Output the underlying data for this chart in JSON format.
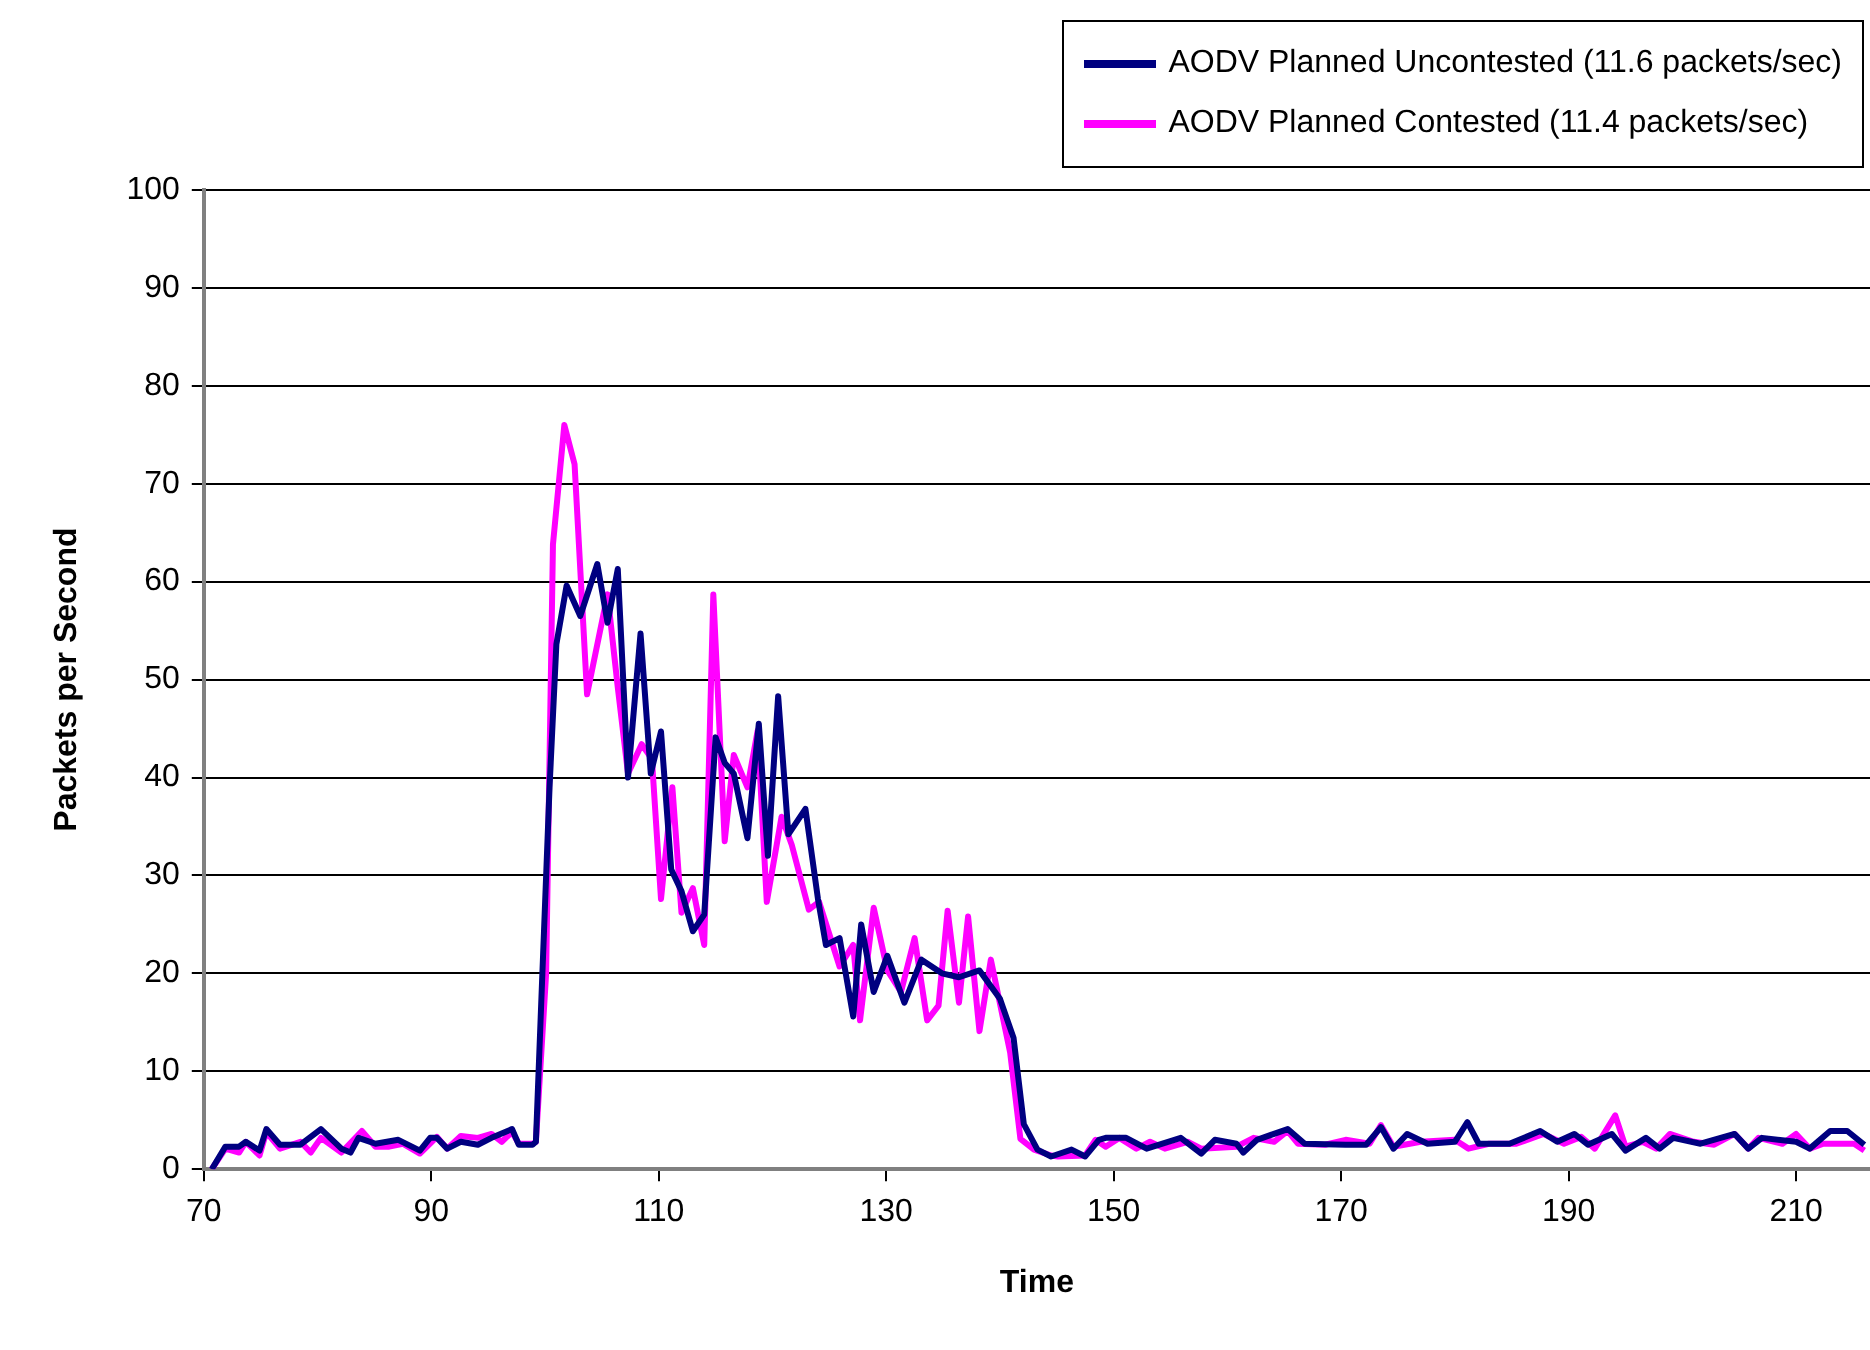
{
  "chart_data": {
    "type": "line",
    "xlabel": "Time",
    "ylabel": "Packets per Second",
    "xlim": [
      70,
      216.5
    ],
    "xticks": [
      70,
      90,
      110,
      130,
      150,
      170,
      190,
      210
    ],
    "ylim": [
      0,
      100
    ],
    "yticks": [
      0,
      10,
      20,
      30,
      40,
      50,
      60,
      70,
      80,
      90,
      100
    ],
    "grid": "y",
    "legend": "top right",
    "marker": "none",
    "line_style": "solid",
    "series": [
      {
        "name": "AODV Planned Uncontested (11.6 packets/sec)",
        "color": "#000080",
        "x": [
          70.7,
          71.9,
          73.1,
          73.7,
          74.9,
          75.5,
          76.7,
          78.5,
          80.3,
          82.1,
          82.9,
          83.6,
          85.1,
          87.1,
          89,
          89.9,
          90.5,
          91.4,
          92.6,
          94.1,
          95.3,
          97.1,
          97.7,
          98.9,
          99.2,
          100.4,
          101,
          101.9,
          103.1,
          104.6,
          105.5,
          106.4,
          107.3,
          108.4,
          109.3,
          110.2,
          111.1,
          112,
          113,
          114,
          115,
          115.8,
          116.6,
          117.8,
          118.8,
          119.6,
          120.5,
          121.4,
          122.9,
          124,
          124.7,
          125.9,
          127.1,
          127.8,
          128.9,
          130.1,
          131.6,
          133.1,
          134.9,
          136.4,
          138.2,
          140,
          141.2,
          142.1,
          143.3,
          144.5,
          146.3,
          147.5,
          148.7,
          149.3,
          151.1,
          152.9,
          155.9,
          157.7,
          158.9,
          160.8,
          161.4,
          162.6,
          165.3,
          166.8,
          170.4,
          172.2,
          173.5,
          174.6,
          175.8,
          177.6,
          180,
          181.1,
          182.1,
          184.8,
          187.5,
          189,
          190.5,
          191.7,
          193.8,
          195,
          196.8,
          198,
          199.2,
          201.6,
          204.6,
          205.8,
          207,
          210,
          211.2,
          213,
          214.5,
          216
        ],
        "values": [
          0,
          2.3,
          2.3,
          2.8,
          1.9,
          4.1,
          2.5,
          2.5,
          4.1,
          2.1,
          1.7,
          3.2,
          2.6,
          3,
          1.9,
          3.2,
          3.2,
          2.1,
          2.8,
          2.5,
          3.2,
          4.1,
          2.5,
          2.5,
          2.8,
          39,
          53.6,
          59.6,
          56.5,
          61.8,
          55.8,
          61.3,
          40,
          54.7,
          40.4,
          44.7,
          30.6,
          28.4,
          24.3,
          26,
          44.1,
          41.5,
          40.4,
          33.8,
          45.5,
          32,
          48.3,
          34.2,
          36.8,
          27.6,
          22.9,
          23.6,
          15.6,
          25,
          18.1,
          21.8,
          17,
          21.4,
          20,
          19.6,
          20.3,
          17.4,
          13.4,
          4.6,
          2,
          1.3,
          2,
          1.3,
          3,
          3.2,
          3.2,
          2.1,
          3.2,
          1.6,
          3,
          2.6,
          1.7,
          3,
          4.1,
          2.6,
          2.5,
          2.5,
          4.3,
          2.1,
          3.6,
          2.6,
          2.8,
          4.8,
          2.6,
          2.6,
          3.9,
          2.8,
          3.6,
          2.5,
          3.6,
          1.9,
          3.2,
          2.1,
          3.2,
          2.6,
          3.6,
          2.1,
          3.2,
          2.8,
          2.1,
          3.9,
          3.9,
          2.5
        ]
      },
      {
        "name": "AODV Planned Contested (11.4 packets/sec)",
        "color": "#ff00ff",
        "x": [
          70.7,
          71.9,
          73.1,
          73.7,
          74.9,
          75.5,
          76.7,
          78.5,
          79.4,
          80.3,
          82.1,
          83.9,
          85.1,
          86.3,
          87.5,
          89,
          90.5,
          91.4,
          92.6,
          94.1,
          95.3,
          96.2,
          97.1,
          97.7,
          98.9,
          99.2,
          100.1,
          100.7,
          101.7,
          102.6,
          103.7,
          105.5,
          106.4,
          107.3,
          108.5,
          109.4,
          110.2,
          111.2,
          112,
          113,
          114,
          114.8,
          115.8,
          116.6,
          117.8,
          118.7,
          119.5,
          120.8,
          121.7,
          123.2,
          124.1,
          125.9,
          127.1,
          127.7,
          128.9,
          130.1,
          131.3,
          132.5,
          133.6,
          134.6,
          135.4,
          136.4,
          137.2,
          138.2,
          139.2,
          140.9,
          141.8,
          143,
          144.5,
          145.1,
          147.5,
          148.4,
          149.3,
          150.5,
          152,
          153.2,
          154.5,
          156.5,
          157.7,
          160.8,
          162.3,
          164.1,
          165.3,
          166.2,
          168.6,
          170.4,
          172.5,
          173.5,
          174.6,
          177,
          180,
          181.2,
          183,
          185.4,
          187.8,
          189.6,
          191.1,
          192.3,
          194.1,
          195,
          196.5,
          197.7,
          198.9,
          201,
          202.8,
          204.6,
          205.8,
          206.7,
          208.8,
          210,
          211.2,
          212.4,
          215.1,
          216
        ],
        "values": [
          0,
          2.1,
          1.7,
          2.8,
          1.4,
          3.8,
          2.1,
          2.8,
          1.7,
          3.2,
          1.7,
          3.9,
          2.3,
          2.3,
          2.6,
          1.6,
          3.3,
          2.1,
          3.4,
          3.2,
          3.6,
          2.8,
          3.8,
          2.6,
          2.6,
          2.8,
          20,
          63.8,
          76,
          72,
          48.5,
          58.7,
          49.2,
          40.4,
          43.4,
          41.9,
          27.6,
          39,
          26.2,
          28.7,
          22.9,
          58.7,
          33.5,
          42.3,
          39,
          44.8,
          27.3,
          36,
          33.1,
          26.5,
          27.3,
          20.7,
          22.9,
          15.2,
          26.7,
          20.3,
          18.1,
          23.6,
          15.2,
          16.7,
          26.4,
          17,
          25.8,
          14.1,
          21.4,
          11.9,
          3.1,
          2,
          1.4,
          1.3,
          1.4,
          3,
          2.3,
          3.2,
          2.1,
          2.8,
          2.1,
          2.8,
          2.1,
          2.3,
          3.2,
          2.8,
          3.9,
          2.6,
          2.5,
          3,
          2.6,
          4.5,
          2.3,
          2.8,
          3,
          2.1,
          2.6,
          2.6,
          3.6,
          2.6,
          3.3,
          2.1,
          5.5,
          2.3,
          2.8,
          2.1,
          3.6,
          2.8,
          2.5,
          3.6,
          2.1,
          3.2,
          2.6,
          3.6,
          2.1,
          2.6,
          2.6,
          1.9
        ]
      }
    ]
  }
}
